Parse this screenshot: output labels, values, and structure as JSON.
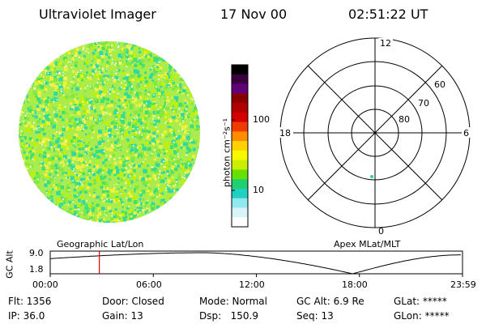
{
  "header": {
    "instrument": "Ultraviolet Imager",
    "date": "17 Nov 00",
    "time": "02:51:22 UT"
  },
  "colorbar": {
    "unit_label": "photon cm⁻²s⁻¹",
    "ticks": [
      "100",
      "10"
    ],
    "colors": [
      "#000000",
      "#3a003f",
      "#62007a",
      "#8a0000",
      "#b00000",
      "#d40000",
      "#ee3c00",
      "#ff8c00",
      "#ffd200",
      "#f7f700",
      "#c8f000",
      "#66e000",
      "#20d070",
      "#20d0c0",
      "#90e8f0",
      "#d8f4f8",
      "#ffffff"
    ]
  },
  "polar": {
    "labels": {
      "top": "12",
      "left": "18",
      "right": "6",
      "bottom": "0"
    },
    "rings": [
      "60",
      "70",
      "80"
    ],
    "marker_color": "#28d0b0"
  },
  "image": {
    "noise_colors": [
      "#40e070",
      "#80e840",
      "#c0f000",
      "#f0f040",
      "#30d8a8"
    ]
  },
  "orbit": {
    "left_label": "Geographic Lat/Lon",
    "right_label": "Apex MLat/MLT",
    "axis_label": "GC Alt",
    "y_ticks": [
      "9.0",
      "1.8"
    ],
    "x_ticks": [
      "00:00",
      "06:00",
      "12:00",
      "18:00",
      "23:59"
    ],
    "marker_color": "#dd0000",
    "current_time_hours": 2.86,
    "apogee_hours": 9.0,
    "perigee_hours": 17.6
  },
  "footer": {
    "flt": "Flt: 1356",
    "ip": "IP: 36.0",
    "door": "Door: Closed",
    "gain": "Gain: 13",
    "mode": "Mode: Normal",
    "dsp": "Dsp:   150.9",
    "gcalt": "GC Alt: 6.9 Re",
    "seq": "Seq: 13",
    "glat": "GLat: *****",
    "glon": "GLon: *****"
  }
}
